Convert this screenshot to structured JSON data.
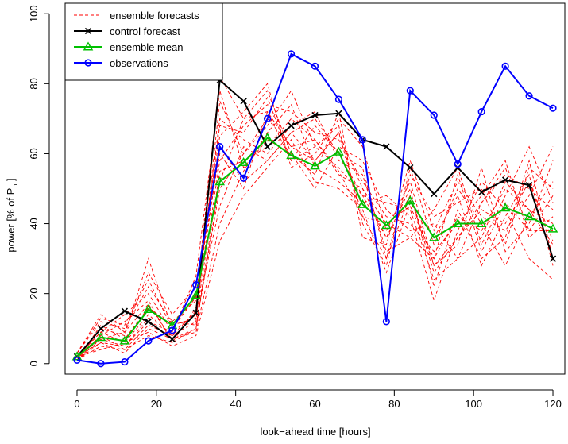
{
  "chart_data": {
    "type": "line",
    "title": "",
    "xlabel": "look−ahead time [hours]",
    "ylabel_prefix": "power [% of P",
    "ylabel_sub": "n",
    "ylabel_suffix": " ]",
    "xlim": [
      -3,
      123
    ],
    "ylim": [
      -3,
      103
    ],
    "xticks": [
      0,
      20,
      40,
      60,
      80,
      100,
      120
    ],
    "yticks": [
      0,
      20,
      40,
      60,
      80,
      100
    ],
    "grid": false,
    "legend_position": "top-left",
    "x": [
      0,
      6,
      12,
      18,
      24,
      30,
      36,
      42,
      48,
      54,
      60,
      66,
      72,
      78,
      84,
      90,
      96,
      102,
      108,
      114,
      120
    ],
    "series": [
      {
        "name": "ensemble forecasts",
        "style": "dashed",
        "color": "#ff0000",
        "marker": "none",
        "members": [
          [
            2,
            9,
            6,
            14,
            8,
            12,
            75,
            60,
            70,
            62,
            58,
            66,
            50,
            40,
            45,
            30,
            42,
            38,
            50,
            44,
            40
          ],
          [
            1,
            5,
            4,
            8,
            6,
            10,
            55,
            58,
            62,
            70,
            64,
            55,
            42,
            30,
            48,
            26,
            36,
            44,
            40,
            52,
            35
          ],
          [
            3,
            12,
            10,
            22,
            12,
            18,
            82,
            70,
            78,
            60,
            50,
            62,
            58,
            44,
            38,
            40,
            30,
            46,
            56,
            38,
            48
          ],
          [
            2,
            7,
            5,
            12,
            9,
            14,
            45,
            62,
            58,
            66,
            70,
            60,
            48,
            36,
            50,
            22,
            44,
            30,
            36,
            58,
            30
          ],
          [
            1,
            10,
            8,
            30,
            10,
            20,
            60,
            50,
            72,
            58,
            62,
            68,
            40,
            28,
            56,
            34,
            50,
            40,
            28,
            42,
            52
          ],
          [
            2,
            6,
            3,
            10,
            7,
            9,
            40,
            55,
            66,
            74,
            56,
            52,
            46,
            48,
            42,
            18,
            38,
            52,
            44,
            30,
            24
          ],
          [
            1,
            8,
            12,
            18,
            6,
            16,
            70,
            64,
            60,
            68,
            72,
            58,
            54,
            32,
            36,
            44,
            56,
            34,
            48,
            62,
            46
          ],
          [
            3,
            14,
            9,
            26,
            14,
            22,
            65,
            72,
            80,
            56,
            60,
            70,
            62,
            38,
            52,
            28,
            34,
            56,
            32,
            40,
            58
          ],
          [
            2,
            4,
            6,
            9,
            5,
            8,
            35,
            48,
            56,
            64,
            52,
            50,
            44,
            26,
            46,
            36,
            48,
            28,
            42,
            54,
            28
          ],
          [
            1,
            11,
            7,
            16,
            11,
            13,
            58,
            68,
            74,
            72,
            66,
            64,
            52,
            42,
            40,
            32,
            40,
            48,
            58,
            36,
            42
          ],
          [
            2,
            9,
            14,
            20,
            9,
            25,
            78,
            56,
            64,
            60,
            54,
            72,
            36,
            34,
            58,
            38,
            52,
            42,
            38,
            48,
            62
          ],
          [
            1,
            6,
            5,
            13,
            12,
            11,
            50,
            60,
            68,
            78,
            62,
            56,
            48,
            46,
            44,
            24,
            30,
            36,
            52,
            44,
            34
          ],
          [
            3,
            13,
            11,
            24,
            10,
            19,
            68,
            66,
            76,
            58,
            68,
            60,
            56,
            30,
            54,
            42,
            46,
            50,
            34,
            56,
            50
          ],
          [
            2,
            8,
            4,
            11,
            8,
            15,
            62,
            52,
            58,
            66,
            58,
            66,
            42,
            40,
            36,
            30,
            54,
            32,
            46,
            38,
            38
          ],
          [
            1,
            7,
            9,
            17,
            7,
            10,
            52,
            70,
            72,
            62,
            64,
            54,
            50,
            36,
            48,
            28,
            36,
            46,
            54,
            50,
            44
          ]
        ]
      },
      {
        "name": "control forecast",
        "style": "solid",
        "color": "#000000",
        "marker": "x",
        "values": [
          2,
          10,
          15,
          12,
          7,
          14.5,
          81,
          75,
          62,
          68,
          71,
          71.5,
          64,
          62,
          56,
          48.5,
          56,
          49,
          52.5,
          51,
          30
        ]
      },
      {
        "name": "ensemble mean",
        "style": "solid",
        "color": "#00c000",
        "marker": "triangle",
        "values": [
          2,
          7.5,
          6.5,
          15.5,
          11,
          19.5,
          52,
          57.5,
          64.5,
          59.5,
          56.5,
          60.5,
          45.5,
          39.5,
          46.5,
          36,
          40,
          40,
          44.5,
          42,
          38.5
        ]
      },
      {
        "name": "observations",
        "style": "solid",
        "color": "#0000ff",
        "marker": "circle",
        "values": [
          1,
          0,
          0.5,
          6.5,
          9.5,
          22.5,
          62,
          53,
          70,
          88.5,
          85,
          75.5,
          64,
          12,
          78,
          71,
          57,
          72,
          85,
          76.5,
          73
        ]
      }
    ]
  }
}
